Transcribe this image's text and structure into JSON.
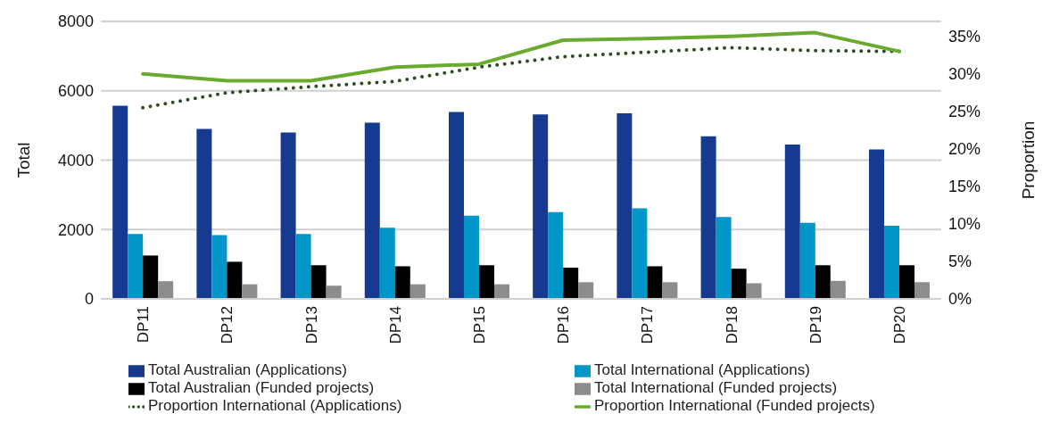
{
  "chart_data": {
    "type": "bar",
    "ylabel": "Total",
    "y2label": "Proportion",
    "categories": [
      "DP11",
      "DP12",
      "DP13",
      "DP14",
      "DP15",
      "DP16",
      "DP17",
      "DP18",
      "DP19",
      "DP20"
    ],
    "series": [
      {
        "name": "Total Australian (Applications)",
        "color": "#153a8f",
        "values": [
          5570,
          4900,
          4800,
          5080,
          5390,
          5320,
          5350,
          4690,
          4450,
          4310
        ]
      },
      {
        "name": "Total International (Applications)",
        "color": "#0096c8",
        "values": [
          1870,
          1840,
          1870,
          2050,
          2400,
          2500,
          2610,
          2360,
          2190,
          2110
        ]
      },
      {
        "name": "Total Australian (Funded projects)",
        "color": "#000000",
        "values": [
          1250,
          1070,
          970,
          940,
          970,
          900,
          940,
          870,
          970,
          970
        ]
      },
      {
        "name": "Total International (Funded projects)",
        "color": "#8c8c8c",
        "values": [
          510,
          420,
          380,
          420,
          420,
          480,
          480,
          450,
          520,
          480
        ]
      },
      {
        "name": "Proportion International (Applications)",
        "color": "#2e4d1f",
        "type": "line",
        "axis": "y2",
        "line_style": "dotted",
        "values": [
          25.5,
          27.5,
          28.3,
          29.0,
          30.9,
          32.3,
          32.9,
          33.5,
          33.1,
          33.0
        ]
      },
      {
        "name": "Proportion International (Funded projects)",
        "color": "#6aaa2e",
        "type": "line",
        "axis": "y2",
        "line_style": "solid",
        "values": [
          30.0,
          29.1,
          29.1,
          30.9,
          31.3,
          34.5,
          34.7,
          35.0,
          35.5,
          33.0
        ]
      }
    ],
    "ylim": [
      0,
      8000
    ],
    "yticks": [
      0,
      2000,
      4000,
      6000,
      8000
    ],
    "y2lim": [
      0,
      37
    ],
    "y2ticks": [
      {
        "value": 0,
        "label": "0%"
      },
      {
        "value": 5,
        "label": "5%"
      },
      {
        "value": 10,
        "label": "10%"
      },
      {
        "value": 15,
        "label": "15%"
      },
      {
        "value": 20,
        "label": "20%"
      },
      {
        "value": 25,
        "label": "25%"
      },
      {
        "value": 30,
        "label": "30%"
      },
      {
        "value": 35,
        "label": "35%"
      }
    ],
    "grid": "y",
    "legend": "bottom",
    "marker": "none"
  }
}
